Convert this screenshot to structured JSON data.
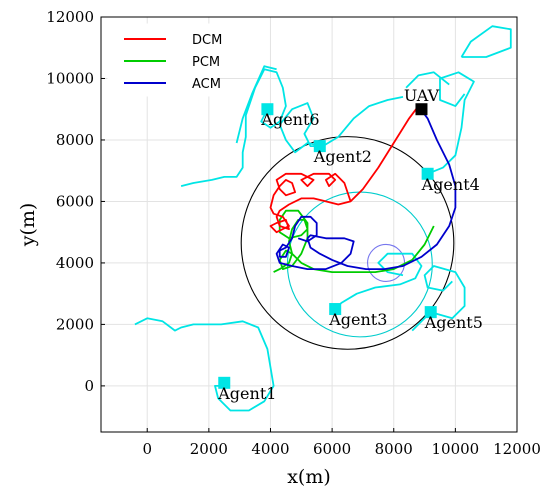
{
  "chart_data": {
    "type": "line",
    "title": "",
    "xlabel": "x(m)",
    "ylabel": "y(m)",
    "xlim": [
      -1500,
      12000
    ],
    "ylim": [
      -1500,
      12000
    ],
    "xticks": [
      0,
      2000,
      4000,
      6000,
      8000,
      10000,
      12000
    ],
    "yticks": [
      0,
      2000,
      4000,
      6000,
      8000,
      10000,
      12000
    ],
    "grid": true,
    "legend_position": "top-left",
    "series": [
      {
        "name": "DCM",
        "color": "#ff0000",
        "points": [
          [
            8800,
            9100
          ],
          [
            8500,
            8700
          ],
          [
            8000,
            7900
          ],
          [
            7500,
            7100
          ],
          [
            7000,
            6400
          ],
          [
            6600,
            6000
          ],
          [
            6200,
            5900
          ],
          [
            5800,
            6000
          ],
          [
            5400,
            6100
          ],
          [
            5000,
            6100
          ],
          [
            4600,
            5900
          ],
          [
            4300,
            5700
          ],
          [
            4200,
            5500
          ],
          [
            4300,
            5200
          ],
          [
            4600,
            5100
          ],
          [
            4500,
            5400
          ],
          [
            4200,
            5300
          ],
          [
            4000,
            5200
          ],
          [
            4200,
            5000
          ],
          [
            4600,
            5200
          ],
          [
            4400,
            5500
          ],
          [
            4100,
            5600
          ],
          [
            4000,
            5800
          ],
          [
            4100,
            6200
          ],
          [
            4300,
            6500
          ],
          [
            4500,
            6700
          ],
          [
            4700,
            6600
          ],
          [
            4800,
            6300
          ],
          [
            4500,
            6200
          ],
          [
            4300,
            6400
          ],
          [
            4200,
            6700
          ],
          [
            4500,
            6900
          ],
          [
            5000,
            6900
          ],
          [
            5400,
            6700
          ],
          [
            5200,
            6500
          ],
          [
            5000,
            6700
          ],
          [
            5400,
            6900
          ],
          [
            5900,
            6900
          ],
          [
            6100,
            6700
          ],
          [
            5900,
            6500
          ],
          [
            5800,
            6700
          ],
          [
            6100,
            6900
          ],
          [
            6400,
            6600
          ],
          [
            6600,
            6000
          ]
        ]
      },
      {
        "name": "PCM",
        "color": "#00cc00",
        "points": [
          [
            9300,
            5200
          ],
          [
            9000,
            4600
          ],
          [
            8600,
            4100
          ],
          [
            8000,
            3800
          ],
          [
            7400,
            3700
          ],
          [
            6700,
            3700
          ],
          [
            6000,
            3700
          ],
          [
            5400,
            3800
          ],
          [
            5000,
            4000
          ],
          [
            4700,
            4300
          ],
          [
            4600,
            4700
          ],
          [
            4700,
            5100
          ],
          [
            4900,
            5400
          ],
          [
            5100,
            5400
          ],
          [
            5200,
            5100
          ],
          [
            5000,
            4900
          ],
          [
            4600,
            4800
          ],
          [
            4300,
            5000
          ],
          [
            4300,
            5400
          ],
          [
            4500,
            5700
          ],
          [
            4900,
            5700
          ],
          [
            5200,
            5300
          ],
          [
            5200,
            4800
          ],
          [
            5000,
            4300
          ],
          [
            4700,
            3900
          ],
          [
            4400,
            3800
          ],
          [
            4300,
            4100
          ],
          [
            4500,
            4400
          ],
          [
            4700,
            4300
          ],
          [
            4600,
            4000
          ],
          [
            4300,
            3800
          ],
          [
            4100,
            3700
          ]
        ]
      },
      {
        "name": "ACM",
        "color": "#0000cc",
        "points": [
          [
            8800,
            9100
          ],
          [
            9100,
            8700
          ],
          [
            9400,
            8000
          ],
          [
            9800,
            7200
          ],
          [
            10000,
            6500
          ],
          [
            10000,
            5800
          ],
          [
            9800,
            5200
          ],
          [
            9400,
            4600
          ],
          [
            8900,
            4200
          ],
          [
            8300,
            3900
          ],
          [
            7700,
            3800
          ],
          [
            7100,
            3800
          ],
          [
            6500,
            3900
          ],
          [
            6000,
            4100
          ],
          [
            5600,
            4300
          ],
          [
            5300,
            4500
          ],
          [
            5200,
            4800
          ],
          [
            5300,
            4900
          ],
          [
            5800,
            4800
          ],
          [
            6400,
            4800
          ],
          [
            6700,
            4700
          ],
          [
            6600,
            4300
          ],
          [
            6300,
            4000
          ],
          [
            5800,
            3800
          ],
          [
            5200,
            3800
          ],
          [
            4700,
            3900
          ],
          [
            4300,
            4000
          ],
          [
            4200,
            4300
          ],
          [
            4400,
            4600
          ],
          [
            4600,
            4500
          ],
          [
            4500,
            4200
          ],
          [
            4300,
            4200
          ],
          [
            4300,
            4400
          ],
          [
            4500,
            4500
          ],
          [
            4700,
            4800
          ],
          [
            4800,
            5200
          ],
          [
            5000,
            5500
          ],
          [
            5300,
            5500
          ],
          [
            5500,
            5300
          ],
          [
            5500,
            4900
          ],
          [
            5200,
            4700
          ],
          [
            4900,
            4800
          ]
        ]
      },
      {
        "name": "agent-trajectories",
        "color": "#00e5e5",
        "points": [
          [
            -400,
            2000
          ],
          [
            0,
            2200
          ],
          [
            500,
            2100
          ],
          [
            900,
            1800
          ],
          [
            1100,
            1900
          ],
          [
            1500,
            2000
          ],
          [
            2400,
            2000
          ],
          [
            3100,
            2100
          ],
          [
            3600,
            1900
          ],
          [
            3900,
            1200
          ],
          [
            4000,
            600
          ],
          [
            4100,
            0
          ],
          [
            3800,
            -500
          ],
          [
            3300,
            -800
          ],
          [
            2700,
            -800
          ],
          [
            2300,
            -400
          ],
          [
            2200,
            0
          ],
          [
            2500,
            0
          ]
        ],
        "segments": [
          [
            [
              1100,
              6500
            ],
            [
              1500,
              6600
            ],
            [
              2100,
              6700
            ],
            [
              2500,
              6800
            ],
            [
              2900,
              6800
            ],
            [
              3100,
              7100
            ],
            [
              3100,
              7600
            ],
            [
              3200,
              8100
            ],
            [
              3200,
              8800
            ],
            [
              3500,
              9700
            ],
            [
              3800,
              10300
            ],
            [
              4200,
              10200
            ],
            [
              4400,
              9700
            ],
            [
              4500,
              9100
            ],
            [
              4300,
              8600
            ],
            [
              4000,
              8400
            ],
            [
              3700,
              8600
            ],
            [
              3900,
              9000
            ]
          ],
          [
            [
              2900,
              7900
            ],
            [
              3100,
              8700
            ],
            [
              3400,
              9500
            ],
            [
              3800,
              10400
            ],
            [
              4200,
              10300
            ]
          ],
          [
            [
              5700,
              7800
            ],
            [
              5200,
              7900
            ],
            [
              4800,
              7600
            ],
            [
              4500,
              8000
            ],
            [
              4300,
              8500
            ],
            [
              4700,
              9000
            ],
            [
              5200,
              9200
            ],
            [
              5400,
              8700
            ],
            [
              5100,
              8200
            ],
            [
              5300,
              7800
            ],
            [
              5700,
              7800
            ]
          ],
          [
            [
              5700,
              7800
            ],
            [
              6200,
              8100
            ],
            [
              6700,
              8700
            ],
            [
              7200,
              9100
            ],
            [
              7800,
              9300
            ],
            [
              8300,
              9400
            ]
          ],
          [
            [
              6100,
              2500
            ],
            [
              6300,
              2700
            ],
            [
              6800,
              3000
            ],
            [
              7400,
              3200
            ],
            [
              8200,
              3300
            ],
            [
              8700,
              3500
            ],
            [
              8900,
              3900
            ],
            [
              8600,
              4300
            ],
            [
              7800,
              4300
            ],
            [
              7500,
              4000
            ],
            [
              7800,
              3700
            ],
            [
              8300,
              3600
            ]
          ],
          [
            [
              9100,
              6900
            ],
            [
              9600,
              7100
            ],
            [
              10000,
              7500
            ],
            [
              10200,
              8400
            ],
            [
              10300,
              9300
            ],
            [
              10600,
              9900
            ],
            [
              10100,
              10200
            ],
            [
              9500,
              10000
            ],
            [
              9500,
              9300
            ],
            [
              10000,
              9100
            ],
            [
              10300,
              9500
            ]
          ],
          [
            [
              9800,
              9800
            ],
            [
              9300,
              10200
            ],
            [
              8800,
              10100
            ],
            [
              8400,
              9700
            ]
          ],
          [
            [
              10200,
              10700
            ],
            [
              10500,
              11200
            ],
            [
              11200,
              11700
            ],
            [
              11800,
              11600
            ],
            [
              11800,
              11000
            ],
            [
              11000,
              10700
            ],
            [
              10200,
              10700
            ]
          ],
          [
            [
              9200,
              2400
            ],
            [
              9900,
              2200
            ],
            [
              10300,
              2600
            ],
            [
              10300,
              3200
            ],
            [
              10000,
              3700
            ],
            [
              9300,
              3900
            ],
            [
              9000,
              3600
            ],
            [
              9100,
              3200
            ],
            [
              9600,
              3100
            ],
            [
              9900,
              3400
            ]
          ],
          [
            [
              9200,
              2400
            ],
            [
              8900,
              2100
            ],
            [
              8600,
              1800
            ]
          ]
        ]
      }
    ],
    "circles": [
      {
        "name": "coverage",
        "cx": 6500,
        "cy": 4650,
        "r": 3450,
        "color": "#000000"
      },
      {
        "name": "agent-coverage",
        "cx": 6900,
        "cy": 3950,
        "r": 2350,
        "color": "#00cccc"
      },
      {
        "name": "target",
        "cx": 7750,
        "cy": 4000,
        "r": 600,
        "color": "#7777ee"
      }
    ],
    "markers": [
      {
        "label": "UAV",
        "x": 8900,
        "y": 9000,
        "color": "#000000",
        "label_dx": 0,
        "label_dy": 0
      },
      {
        "label": "Agent1",
        "x": 2500,
        "y": 100,
        "color": "#00e5e5"
      },
      {
        "label": "Agent2",
        "x": 5600,
        "y": 7800,
        "color": "#00e5e5"
      },
      {
        "label": "Agent3",
        "x": 6100,
        "y": 2500,
        "color": "#00e5e5"
      },
      {
        "label": "Agent4",
        "x": 9100,
        "y": 6900,
        "color": "#00e5e5"
      },
      {
        "label": "Agent5",
        "x": 9200,
        "y": 2400,
        "color": "#00e5e5"
      },
      {
        "label": "Agent6",
        "x": 3900,
        "y": 9000,
        "color": "#00e5e5"
      }
    ]
  }
}
